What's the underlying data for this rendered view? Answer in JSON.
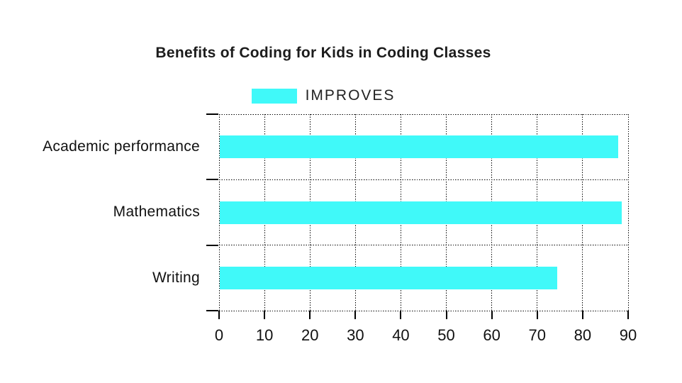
{
  "header": {
    "title": "Benefits of Coding for Kids in Coding Classes"
  },
  "legend": {
    "label": "IMPROVES",
    "swatch_color": "#40F9F9"
  },
  "chart_data": {
    "type": "bar",
    "orientation": "horizontal",
    "title": "Benefits of Coding for Kids in Coding Classes",
    "categories": [
      "Academic performance",
      "Mathematics",
      "Writing"
    ],
    "series": [
      {
        "name": "IMPROVES",
        "color": "#40F9F9",
        "values": [
          87.6,
          88.4,
          74.3
        ]
      }
    ],
    "xlabel": "",
    "ylabel": "",
    "xlim": [
      0,
      90
    ],
    "x_ticks": [
      0,
      10,
      20,
      30,
      40,
      50,
      60,
      70,
      80,
      90
    ],
    "grid": "dotted",
    "grid_color": "#000000",
    "legend_position": "top-center",
    "background": "#ffffff"
  },
  "colors": {
    "bar": "#40F9F9",
    "title_text": "#1c1c1c",
    "axis_text": "#111111",
    "grid": "#000000",
    "background": "#ffffff"
  }
}
